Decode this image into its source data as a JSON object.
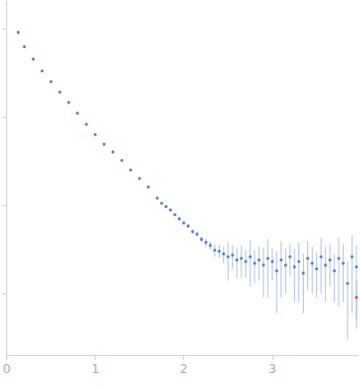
{
  "chart_data": {
    "type": "scatter",
    "log": "y",
    "grid": false,
    "tick_labels": "x",
    "xlim": [
      0,
      3.97
    ],
    "xticks": [
      0,
      1,
      2,
      3
    ],
    "ylim": [
      0.0002,
      2
    ],
    "yticks": [
      0.001,
      0.01,
      0.1,
      1
    ],
    "series": [
      {
        "color": "#3a6bc4",
        "marker": "circle",
        "x": [
          0.13,
          0.2,
          0.3,
          0.4,
          0.5,
          0.6,
          0.7,
          0.8,
          0.9,
          1.0,
          1.1,
          1.2,
          1.3,
          1.4,
          1.5,
          1.6,
          1.7,
          1.75,
          1.8,
          1.85,
          1.9,
          1.95,
          2.0,
          2.05,
          2.1,
          2.15,
          2.2,
          2.25,
          2.3,
          2.35,
          2.4,
          2.45,
          2.5,
          2.55,
          2.6,
          2.65,
          2.7,
          2.75,
          2.8,
          2.85,
          2.9,
          2.95,
          3.0,
          3.05,
          3.1,
          3.15,
          3.2,
          3.25,
          3.3,
          3.35,
          3.4,
          3.45,
          3.5,
          3.55,
          3.6,
          3.65,
          3.7,
          3.75,
          3.8,
          3.85,
          3.9,
          3.95
        ],
        "values": [
          0.9,
          0.62,
          0.45,
          0.33,
          0.25,
          0.19,
          0.145,
          0.11,
          0.082,
          0.063,
          0.049,
          0.04,
          0.032,
          0.025,
          0.02,
          0.016,
          0.012,
          0.0105,
          0.0096,
          0.0088,
          0.0078,
          0.007,
          0.0063,
          0.0058,
          0.005,
          0.0047,
          0.0041,
          0.0038,
          0.0035,
          0.0031,
          0.003,
          0.0028,
          0.0026,
          0.0027,
          0.0024,
          0.0025,
          0.0023,
          0.0026,
          0.0022,
          0.0024,
          0.0021,
          0.0025,
          0.0023,
          0.0018,
          0.0024,
          0.0021,
          0.0026,
          0.002,
          0.0023,
          0.0017,
          0.0025,
          0.0022,
          0.0019,
          0.0026,
          0.0021,
          0.0024,
          0.0018,
          0.0025,
          0.0022,
          0.0013,
          0.0026,
          0.002
        ],
        "errors": [
          0.05,
          0.02,
          0.01,
          0.006,
          0.004,
          0.003,
          0.002,
          0.0015,
          0.0012,
          0.001,
          0.0008,
          0.0007,
          0.0006,
          0.0005,
          0.0004,
          0.0004,
          0.0003,
          0.0003,
          0.0003,
          0.0003,
          0.0003,
          0.0003,
          0.0003,
          0.0003,
          0.0003,
          0.0003,
          0.0003,
          0.0004,
          0.0004,
          0.0005,
          0.0005,
          0.0006,
          0.0012,
          0.0008,
          0.0009,
          0.001,
          0.0008,
          0.0014,
          0.0009,
          0.001,
          0.0012,
          0.0016,
          0.0009,
          0.0012,
          0.0015,
          0.0011,
          0.001,
          0.0012,
          0.0015,
          0.0011,
          0.0014,
          0.0012,
          0.001,
          0.0016,
          0.0013,
          0.0012,
          0.001,
          0.0018,
          0.0014,
          0.001,
          0.002,
          0.0015
        ]
      },
      {
        "color": "#e03030",
        "marker": "circle",
        "x": [
          3.95
        ],
        "values": [
          0.0009
        ],
        "errors": [
          0.0005
        ]
      }
    ]
  }
}
